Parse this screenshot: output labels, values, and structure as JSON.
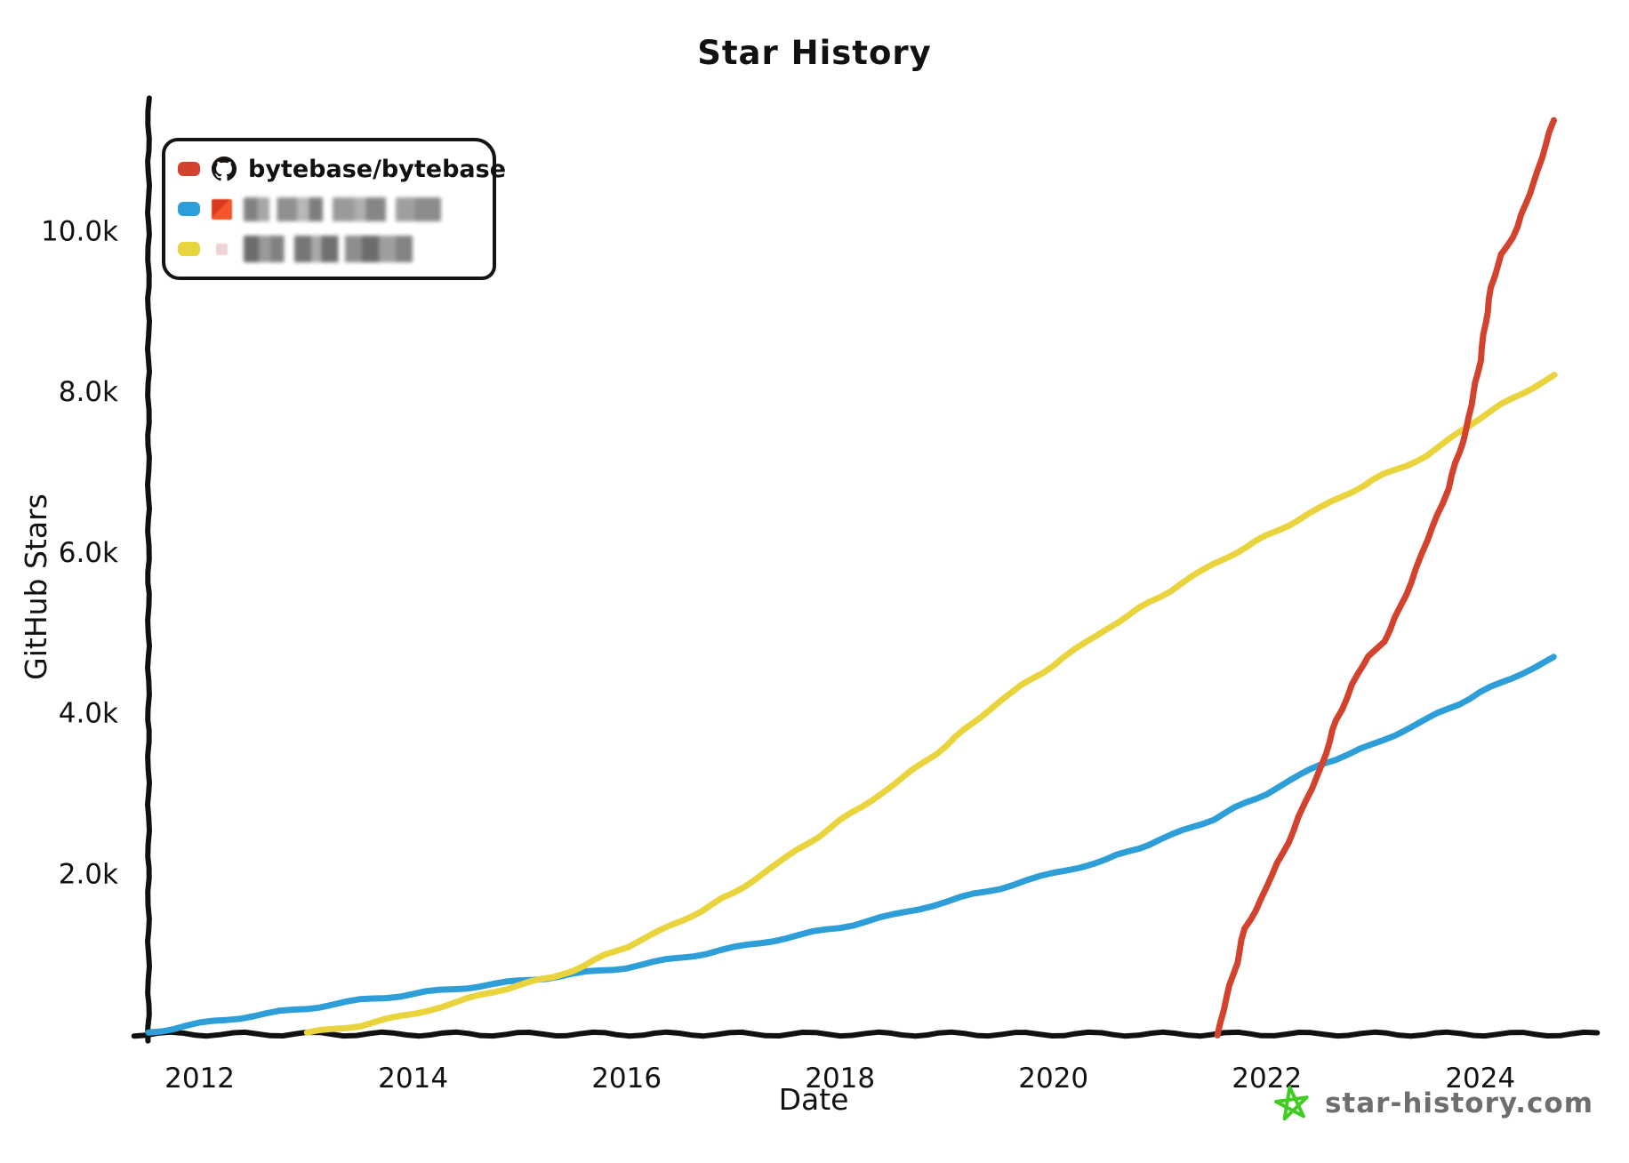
{
  "page": {
    "title": "Star History"
  },
  "axes": {
    "x_label": "Date",
    "y_label": "GitHub Stars"
  },
  "legend": {
    "items": [
      {
        "name": "bytebase/bytebase",
        "swatch_color": "#d2422c",
        "avatar": "github-octocat",
        "blurred": false
      },
      {
        "name": "",
        "swatch_color": "#2e9ed8",
        "avatar": "blurred-orange-avatar",
        "blurred": true
      },
      {
        "name": "",
        "swatch_color": "#e9d43e",
        "avatar": "blurred-pink-avatar",
        "blurred": true
      }
    ]
  },
  "watermark": {
    "label": "star-history.com",
    "icon": "green-star",
    "text_color": "#6e6e6e",
    "icon_color": "#3fce1f"
  },
  "chart_data": {
    "type": "line",
    "title": "Star History",
    "xlabel": "Date",
    "ylabel": "GitHub Stars",
    "grid": false,
    "legend_position": "top-left",
    "xlim": [
      2011.52,
      2025.06
    ],
    "ylim": [
      0,
      11600
    ],
    "x_ticks": [
      {
        "value": 2012,
        "label": "2012"
      },
      {
        "value": 2014,
        "label": "2014"
      },
      {
        "value": 2016,
        "label": "2016"
      },
      {
        "value": 2018,
        "label": "2018"
      },
      {
        "value": 2020,
        "label": "2020"
      },
      {
        "value": 2022,
        "label": "2022"
      },
      {
        "value": 2024,
        "label": "2024"
      }
    ],
    "y_ticks": [
      {
        "value": 2000,
        "label": "2.0k"
      },
      {
        "value": 4000,
        "label": "4.0k"
      },
      {
        "value": 6000,
        "label": "6.0k"
      },
      {
        "value": 8000,
        "label": "8.0k"
      },
      {
        "value": 10000,
        "label": "10.0k"
      }
    ],
    "series": [
      {
        "name": "blurred-repo-blue",
        "color": "#2e9ed8",
        "points": [
          [
            2011.52,
            20
          ],
          [
            2012,
            130
          ],
          [
            2012.5,
            230
          ],
          [
            2013,
            320
          ],
          [
            2013.5,
            420
          ],
          [
            2014,
            500
          ],
          [
            2014.5,
            580
          ],
          [
            2015,
            660
          ],
          [
            2015.5,
            745
          ],
          [
            2016,
            830
          ],
          [
            2016.5,
            950
          ],
          [
            2017,
            1070
          ],
          [
            2017.5,
            1200
          ],
          [
            2018,
            1330
          ],
          [
            2018.5,
            1480
          ],
          [
            2019,
            1650
          ],
          [
            2019.5,
            1820
          ],
          [
            2020,
            2000
          ],
          [
            2020.5,
            2170
          ],
          [
            2021,
            2420
          ],
          [
            2021.5,
            2680
          ],
          [
            2022,
            3000
          ],
          [
            2022.52,
            3370
          ],
          [
            2023,
            3600
          ],
          [
            2023.5,
            3920
          ],
          [
            2024,
            4250
          ],
          [
            2024.69,
            4680
          ]
        ]
      },
      {
        "name": "blurred-repo-yellow",
        "color": "#e9d43e",
        "points": [
          [
            2013.0,
            10
          ],
          [
            2013.5,
            110
          ],
          [
            2014,
            250
          ],
          [
            2014.5,
            430
          ],
          [
            2015,
            620
          ],
          [
            2015.3,
            700
          ],
          [
            2015.5,
            800
          ],
          [
            2016,
            1090
          ],
          [
            2016.5,
            1400
          ],
          [
            2017,
            1750
          ],
          [
            2017.5,
            2200
          ],
          [
            2018,
            2650
          ],
          [
            2018.5,
            3100
          ],
          [
            2019,
            3600
          ],
          [
            2019.5,
            4150
          ],
          [
            2020,
            4600
          ],
          [
            2020.5,
            5050
          ],
          [
            2021,
            5450
          ],
          [
            2021.5,
            5850
          ],
          [
            2022,
            6200
          ],
          [
            2022.5,
            6550
          ],
          [
            2023,
            6900
          ],
          [
            2023.5,
            7200
          ],
          [
            2024,
            7680
          ],
          [
            2024.69,
            8200
          ]
        ]
      },
      {
        "name": "bytebase/bytebase",
        "color": "#d2422c",
        "points": [
          [
            2021.54,
            0
          ],
          [
            2021.62,
            450
          ],
          [
            2021.72,
            900
          ],
          [
            2021.79,
            1300
          ],
          [
            2021.9,
            1550
          ],
          [
            2022.0,
            1850
          ],
          [
            2022.15,
            2250
          ],
          [
            2022.3,
            2700
          ],
          [
            2022.42,
            3050
          ],
          [
            2022.52,
            3370
          ],
          [
            2022.65,
            3900
          ],
          [
            2022.8,
            4350
          ],
          [
            2022.95,
            4700
          ],
          [
            2023.1,
            4900
          ],
          [
            2023.25,
            5300
          ],
          [
            2023.4,
            5800
          ],
          [
            2023.55,
            6300
          ],
          [
            2023.7,
            6800
          ],
          [
            2023.87,
            7530
          ],
          [
            2024.0,
            8400
          ],
          [
            2024.1,
            9300
          ],
          [
            2024.2,
            9700
          ],
          [
            2024.35,
            10050
          ],
          [
            2024.5,
            10600
          ],
          [
            2024.69,
            11380
          ]
        ]
      }
    ]
  }
}
